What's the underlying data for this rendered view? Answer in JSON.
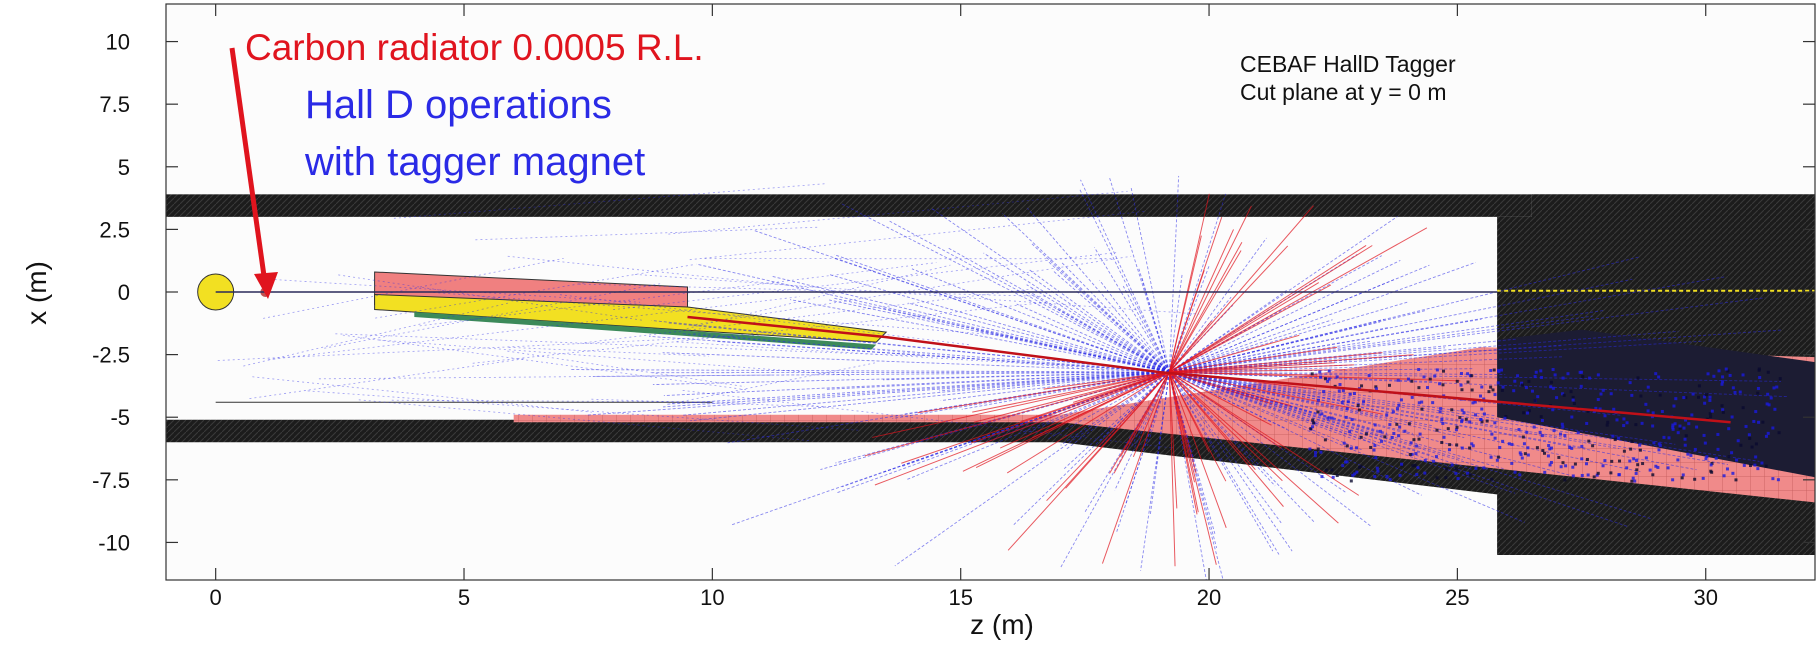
{
  "chart_data": {
    "type": "scatter",
    "title": "CEBAF HallD Tagger",
    "subtitle": "Cut plane at y = 0 m",
    "xlabel": "z (m)",
    "ylabel": "x (m)",
    "xlim": [
      -1,
      32.2
    ],
    "ylim": [
      -11.5,
      11.5
    ],
    "xticks": [
      0,
      5,
      10,
      15,
      20,
      25,
      30
    ],
    "xtick_labels": [
      "0",
      "5",
      "10",
      "15",
      "20",
      "25",
      "30"
    ],
    "yticks": [
      10,
      7.5,
      5,
      2.5,
      0,
      -2.5,
      -5,
      -7.5,
      -10
    ],
    "ytick_labels": [
      "10",
      "7.5",
      "5",
      "2.5",
      "0",
      "-2.5",
      "-5",
      "-7.5",
      "-10"
    ],
    "grid": false,
    "annotations": [
      {
        "text": "Carbon radiator 0.0005 R.L.",
        "color": "#e0141e"
      },
      {
        "text": "Hall D operations",
        "color": "#2a2ae6"
      },
      {
        "text": "with tagger magnet",
        "color": "#2a2ae6"
      }
    ],
    "radiator_marker": {
      "z": 1.0,
      "x": 0
    },
    "beam_axis_x": 0,
    "deflected_beam": [
      [
        9.5,
        -1.0
      ],
      [
        13.5,
        -1.8
      ],
      [
        19.0,
        -3.2
      ],
      [
        30.5,
        -5.2
      ]
    ],
    "shower_center": {
      "z": 19.2,
      "x": -3.2
    },
    "colors": {
      "wall": "#1a1a1a",
      "pink": "#f08080",
      "magnet_yellow": "#f2e022",
      "track_blue": "#2a2ae6",
      "track_red": "#e0141e"
    }
  }
}
